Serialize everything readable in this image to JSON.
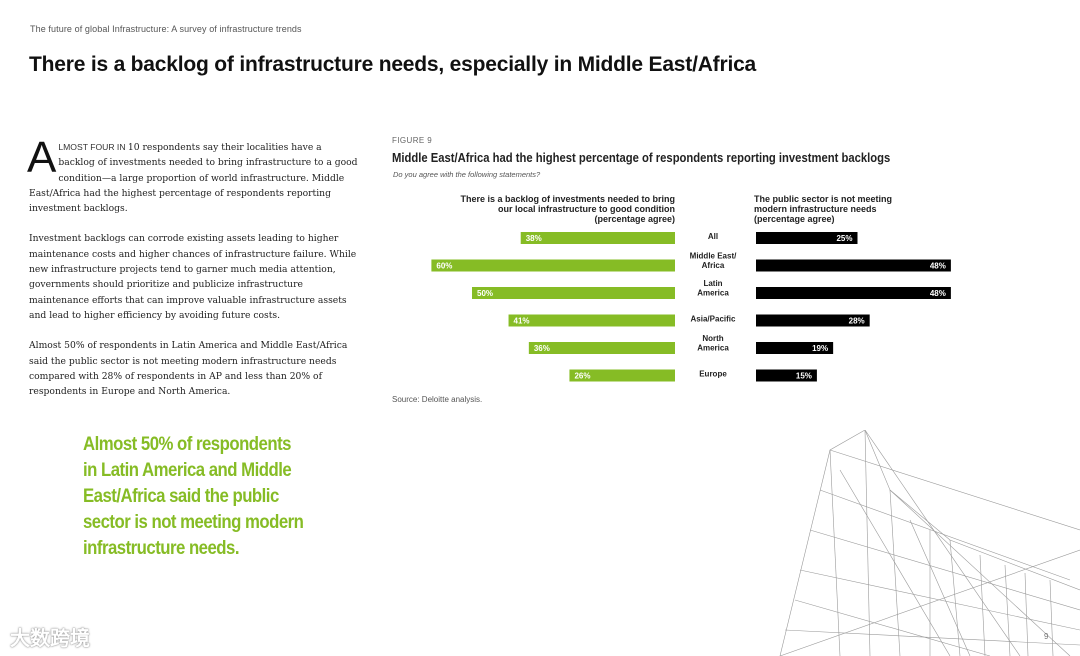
{
  "page": {
    "running_head": "The future of global Infrastructure: A survey of infrastructure trends",
    "title": "There is a backlog of infrastructure needs, especially in Middle East/Africa",
    "page_number": "9",
    "watermark": "大数跨境"
  },
  "body": {
    "drop_cap": "A",
    "lead_in": "LMOST FOUR IN ",
    "p1_rest": "10 respondents say their localities have a backlog of investments needed to bring infrastructure to a good condition—a large proportion of world infrastructure. Middle East/Africa had the highest percentage of respondents reporting investment backlogs.",
    "p2": "Investment backlogs can corrode existing assets leading to higher maintenance costs and higher chances of infrastructure failure. While new infrastructure projects tend to garner much media attention, governments should prioritize and publicize infrastructure maintenance efforts that can improve valuable infrastructure assets and lead to higher efficiency by avoiding future costs.",
    "p3": "Almost 50% of respondents in Latin America and Middle East/Africa said the public sector is not meeting modern infrastructure needs compared with 28% of respondents in AP and less than 20% of respondents in Europe and North America."
  },
  "pull_quote": "Almost 50% of respondents in Latin America and Middle East/Africa said the public sector is not meeting modern infrastructure needs.",
  "figure": {
    "label": "FIGURE 9",
    "source": "Source: Deloitte analysis."
  },
  "colors": {
    "green": "#86bc25",
    "black": "#000000",
    "text": "#222222"
  },
  "chart_data": {
    "type": "bar",
    "title": "Middle East/Africa had the highest percentage of respondents reporting investment backlogs",
    "subtitle": "Do you agree with the following statements?",
    "categories": [
      [
        "All"
      ],
      [
        "Middle East/",
        "Africa"
      ],
      [
        "Latin",
        "America"
      ],
      [
        "Asia/Pacific"
      ],
      [
        "North",
        "America"
      ],
      [
        "Europe"
      ]
    ],
    "series": [
      {
        "name": "There is a backlog of investments needed to bring our local infrastructure to good condition (percentage agree)",
        "heading_lines": [
          "There is a backlog of investments needed to bring",
          "our local infrastructure to good condition",
          "(percentage agree)"
        ],
        "values": [
          38,
          60,
          50,
          41,
          36,
          26
        ],
        "labels": [
          "38%",
          "60%",
          "50%",
          "41%",
          "36%",
          "26%"
        ],
        "color": "#86bc25"
      },
      {
        "name": "The public sector is not meeting modern infrastructure needs (percentage agree)",
        "heading_lines": [
          "The public sector is not meeting",
          "modern infrastructure needs",
          "(percentage agree)"
        ],
        "values": [
          25,
          48,
          48,
          28,
          19,
          15
        ],
        "labels": [
          "25%",
          "48%",
          "48%",
          "28%",
          "19%",
          "15%"
        ],
        "color": "#000000"
      }
    ]
  }
}
